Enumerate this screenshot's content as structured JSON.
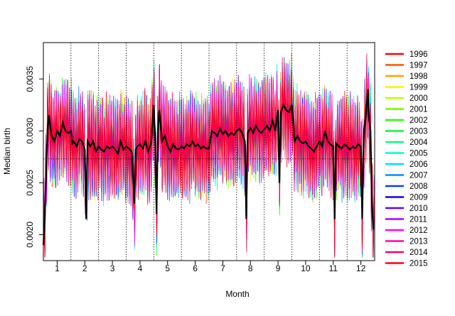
{
  "chart_data": {
    "type": "line",
    "title": "",
    "xlabel": "Month",
    "ylabel": "Median birth",
    "xlim": [
      0.5,
      12.5
    ],
    "ylim": [
      0.00175,
      0.00385
    ],
    "x_ticks": [
      1,
      2,
      3,
      4,
      5,
      6,
      7,
      8,
      9,
      10,
      11,
      12
    ],
    "x_tick_labels": [
      "1",
      "2",
      "3",
      "4",
      "5",
      "6",
      "7",
      "8",
      "9",
      "10",
      "11",
      "12"
    ],
    "y_ticks": [
      0.002,
      0.0025,
      0.003,
      0.0035
    ],
    "y_tick_labels": [
      "0.0020",
      "0.0025",
      "0.0030",
      "0.0035"
    ],
    "month_boundaries": [
      0.5,
      1.5,
      2.5,
      3.5,
      4.5,
      5.5,
      6.5,
      7.5,
      8.5,
      9.5,
      10.5,
      11.5,
      12.5
    ],
    "reference_line_y": 0.00273,
    "legend_position": "right",
    "median_series": {
      "name": "",
      "color": "#000000",
      "points": [
        [
          0.5,
          0.0019
        ],
        [
          0.55,
          0.00215
        ],
        [
          0.6,
          0.0026
        ],
        [
          0.65,
          0.003
        ],
        [
          0.7,
          0.00315
        ],
        [
          0.8,
          0.00295
        ],
        [
          0.9,
          0.0029
        ],
        [
          1.0,
          0.003
        ],
        [
          1.1,
          0.00295
        ],
        [
          1.2,
          0.00308
        ],
        [
          1.3,
          0.003
        ],
        [
          1.4,
          0.00298
        ],
        [
          1.5,
          0.003
        ],
        [
          1.55,
          0.00288
        ],
        [
          1.6,
          0.0029
        ],
        [
          1.7,
          0.00285
        ],
        [
          1.8,
          0.00292
        ],
        [
          1.9,
          0.0029
        ],
        [
          2.0,
          0.00282
        ],
        [
          2.05,
          0.00215
        ],
        [
          2.1,
          0.0029
        ],
        [
          2.2,
          0.00285
        ],
        [
          2.3,
          0.0029
        ],
        [
          2.4,
          0.0028
        ],
        [
          2.5,
          0.00285
        ],
        [
          2.6,
          0.00282
        ],
        [
          2.7,
          0.0028
        ],
        [
          2.8,
          0.00285
        ],
        [
          2.9,
          0.00283
        ],
        [
          3.0,
          0.00285
        ],
        [
          3.1,
          0.00282
        ],
        [
          3.2,
          0.00278
        ],
        [
          3.3,
          0.0029
        ],
        [
          3.4,
          0.00282
        ],
        [
          3.5,
          0.00285
        ],
        [
          3.6,
          0.00283
        ],
        [
          3.7,
          0.0028
        ],
        [
          3.8,
          0.0023
        ],
        [
          3.85,
          0.00282
        ],
        [
          3.9,
          0.00285
        ],
        [
          4.0,
          0.00287
        ],
        [
          4.1,
          0.00283
        ],
        [
          4.2,
          0.0029
        ],
        [
          4.3,
          0.0028
        ],
        [
          4.4,
          0.00288
        ],
        [
          4.5,
          0.00325
        ],
        [
          4.55,
          0.0029
        ],
        [
          4.6,
          0.0022
        ],
        [
          4.65,
          0.003
        ],
        [
          4.7,
          0.0032
        ],
        [
          4.8,
          0.0029
        ],
        [
          4.9,
          0.00295
        ],
        [
          5.0,
          0.00285
        ],
        [
          5.1,
          0.0028
        ],
        [
          5.2,
          0.00287
        ],
        [
          5.3,
          0.00283
        ],
        [
          5.4,
          0.00282
        ],
        [
          5.5,
          0.00285
        ],
        [
          5.6,
          0.00283
        ],
        [
          5.7,
          0.00287
        ],
        [
          5.8,
          0.00285
        ],
        [
          5.9,
          0.0029
        ],
        [
          6.0,
          0.00285
        ],
        [
          6.1,
          0.00287
        ],
        [
          6.2,
          0.00283
        ],
        [
          6.3,
          0.00285
        ],
        [
          6.4,
          0.00283
        ],
        [
          6.5,
          0.00283
        ],
        [
          6.6,
          0.003
        ],
        [
          6.7,
          0.00298
        ],
        [
          6.8,
          0.00295
        ],
        [
          6.9,
          0.00302
        ],
        [
          7.0,
          0.00297
        ],
        [
          7.1,
          0.003
        ],
        [
          7.2,
          0.00295
        ],
        [
          7.3,
          0.00298
        ],
        [
          7.4,
          0.00296
        ],
        [
          7.5,
          0.003
        ],
        [
          7.6,
          0.00302
        ],
        [
          7.7,
          0.00298
        ],
        [
          7.8,
          0.0029
        ],
        [
          7.85,
          0.00215
        ],
        [
          7.9,
          0.00298
        ],
        [
          8.0,
          0.00303
        ],
        [
          8.1,
          0.00298
        ],
        [
          8.2,
          0.00305
        ],
        [
          8.3,
          0.003
        ],
        [
          8.4,
          0.00298
        ],
        [
          8.5,
          0.00302
        ],
        [
          8.6,
          0.00305
        ],
        [
          8.7,
          0.003
        ],
        [
          8.8,
          0.0031
        ],
        [
          8.9,
          0.003
        ],
        [
          9.0,
          0.0032
        ],
        [
          9.05,
          0.0025
        ],
        [
          9.1,
          0.00318
        ],
        [
          9.2,
          0.00325
        ],
        [
          9.3,
          0.0032
        ],
        [
          9.4,
          0.00318
        ],
        [
          9.5,
          0.00325
        ],
        [
          9.6,
          0.0029
        ],
        [
          9.7,
          0.00295
        ],
        [
          9.8,
          0.0029
        ],
        [
          9.9,
          0.00288
        ],
        [
          10.0,
          0.0029
        ],
        [
          10.1,
          0.00285
        ],
        [
          10.2,
          0.00283
        ],
        [
          10.3,
          0.0028
        ],
        [
          10.4,
          0.00285
        ],
        [
          10.5,
          0.0029
        ],
        [
          10.6,
          0.00285
        ],
        [
          10.7,
          0.003
        ],
        [
          10.8,
          0.0029
        ],
        [
          10.9,
          0.00287
        ],
        [
          11.0,
          0.00285
        ],
        [
          11.05,
          0.00215
        ],
        [
          11.1,
          0.00288
        ],
        [
          11.2,
          0.00285
        ],
        [
          11.3,
          0.00283
        ],
        [
          11.4,
          0.00287
        ],
        [
          11.5,
          0.00285
        ],
        [
          11.6,
          0.00282
        ],
        [
          11.7,
          0.00285
        ],
        [
          11.8,
          0.00283
        ],
        [
          11.9,
          0.00287
        ],
        [
          12.0,
          0.00285
        ],
        [
          12.05,
          0.00215
        ],
        [
          12.1,
          0.00295
        ],
        [
          12.2,
          0.0032
        ],
        [
          12.25,
          0.0034
        ],
        [
          12.3,
          0.0031
        ],
        [
          12.35,
          0.003
        ],
        [
          12.4,
          0.0023
        ],
        [
          12.45,
          0.00205
        ]
      ]
    },
    "series": [
      {
        "name": "1996",
        "color": "#FF0000"
      },
      {
        "name": "1997",
        "color": "#FF5000"
      },
      {
        "name": "1998",
        "color": "#FF9F00"
      },
      {
        "name": "1999",
        "color": "#FFEF00"
      },
      {
        "name": "2000",
        "color": "#BFFF00"
      },
      {
        "name": "2001",
        "color": "#70FF00"
      },
      {
        "name": "2002",
        "color": "#20FF00"
      },
      {
        "name": "2003",
        "color": "#00FF30"
      },
      {
        "name": "2004",
        "color": "#00FF80"
      },
      {
        "name": "2005",
        "color": "#00FFCF"
      },
      {
        "name": "2006",
        "color": "#00DFFF"
      },
      {
        "name": "2007",
        "color": "#0090FF"
      },
      {
        "name": "2008",
        "color": "#0040FF"
      },
      {
        "name": "2009",
        "color": "#1000FF"
      },
      {
        "name": "2010",
        "color": "#6000FF"
      },
      {
        "name": "2011",
        "color": "#AF00FF"
      },
      {
        "name": "2012",
        "color": "#FF00FF"
      },
      {
        "name": "2013",
        "color": "#FF00AF"
      },
      {
        "name": "2014",
        "color": "#FF0060"
      },
      {
        "name": "2015",
        "color": "#FF0010"
      }
    ]
  }
}
